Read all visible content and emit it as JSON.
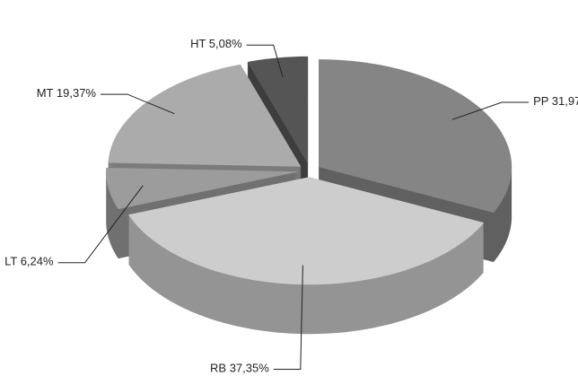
{
  "chart_data": {
    "type": "pie3d",
    "categories": [
      "PP",
      "RB",
      "LT",
      "MT",
      "HT"
    ],
    "values": [
      31.97,
      37.35,
      6.24,
      19.37,
      5.08
    ],
    "value_labels": [
      "31,97%",
      "37,35%",
      "6,24%",
      "19,37%",
      "5,08%"
    ],
    "colors": [
      "#858585",
      "#cdcdcd",
      "#9c9c9c",
      "#ababab",
      "#555555"
    ]
  }
}
